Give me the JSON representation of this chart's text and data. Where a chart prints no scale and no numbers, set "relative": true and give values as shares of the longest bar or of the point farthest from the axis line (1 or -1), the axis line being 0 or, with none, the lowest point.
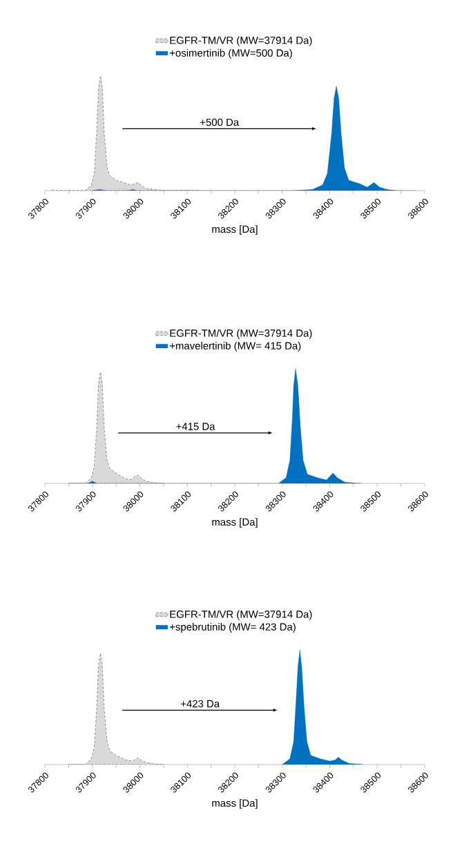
{
  "chart_data": [
    {
      "type": "area",
      "relative": true,
      "legend": "top",
      "xlabel": "mass [Da]",
      "annotations": [
        "+500 Da"
      ],
      "xlim": [
        37800,
        38600
      ],
      "xticks": [
        37800,
        {
          "value": 37850,
          "label": null
        },
        37900,
        {
          "value": 37950,
          "label": null
        },
        38000,
        {
          "value": 38050,
          "label": null
        },
        38100,
        {
          "value": 38150,
          "label": null
        },
        38200,
        {
          "value": 38250,
          "label": null
        },
        38300,
        {
          "value": 38350,
          "label": null
        },
        38400,
        {
          "value": 38450,
          "label": null
        },
        38500,
        {
          "value": 38550,
          "label": null
        },
        38600
      ],
      "series": [
        {
          "name": "EGFR-TM/VR (MW=37914 Da)",
          "color": "#d9d9d9",
          "line_style": "dashed",
          "x": [
            37815,
            37885,
            37898,
            37904,
            37909,
            37913,
            37917,
            37921,
            37925,
            37931,
            37937,
            37950,
            37966,
            37981,
            37996,
            38002,
            38012,
            38028,
            38049,
            38125
          ],
          "values": [
            0,
            0,
            0.05,
            0.15,
            0.5,
            0.9,
            1.0,
            0.9,
            0.5,
            0.2,
            0.13,
            0.09,
            0.07,
            0.05,
            0.07,
            0.05,
            0.02,
            0.01,
            0,
            0
          ]
        },
        {
          "name": "+osimertinib (MW=500 Da)",
          "color": "#0070c0",
          "x": [
            37900,
            37915,
            37930,
            37975,
            37985,
            37995,
            38323,
            38364,
            38385,
            38395,
            38404,
            38409,
            38414,
            38419,
            38424,
            38431,
            38440,
            38463,
            38479,
            38493,
            38505,
            38520,
            38541,
            38582
          ],
          "values": [
            0,
            0.01,
            0,
            0,
            0.01,
            0,
            0,
            0.01,
            0.05,
            0.15,
            0.5,
            0.8,
            0.91,
            0.8,
            0.5,
            0.2,
            0.09,
            0.06,
            0.03,
            0.07,
            0.03,
            0.01,
            0,
            0
          ]
        }
      ]
    },
    {
      "type": "area",
      "relative": true,
      "legend": "top",
      "xlabel": "mass [Da]",
      "annotations": [
        "+415 Da"
      ],
      "xlim": [
        37800,
        38600
      ],
      "xticks": [
        37800,
        {
          "value": 37850,
          "label": null
        },
        37900,
        {
          "value": 37950,
          "label": null
        },
        38000,
        {
          "value": 38050,
          "label": null
        },
        38100,
        {
          "value": 38150,
          "label": null
        },
        38200,
        {
          "value": 38250,
          "label": null
        },
        38300,
        {
          "value": 38350,
          "label": null
        },
        38400,
        {
          "value": 38450,
          "label": null
        },
        38500,
        {
          "value": 38550,
          "label": null
        },
        38600
      ],
      "series": [
        {
          "name": "EGFR-TM/VR (MW=37914 Da)",
          "color": "#d9d9d9",
          "line_style": "dashed",
          "x": [
            37850,
            37885,
            37898,
            37904,
            37909,
            37913,
            37917,
            37921,
            37925,
            37931,
            37937,
            37950,
            37970,
            37981,
            37996,
            38002,
            38012,
            38030,
            38050
          ],
          "values": [
            0,
            0,
            0.05,
            0.15,
            0.48,
            0.87,
            0.97,
            0.87,
            0.48,
            0.2,
            0.13,
            0.09,
            0.04,
            0.035,
            0.073,
            0.05,
            0.02,
            0.005,
            0
          ]
        },
        {
          "name": "+mavelertinib (MW= 415 Da)",
          "color": "#0070c0",
          "x": [
            37850,
            37890,
            37900,
            37910,
            37925,
            38292,
            38308,
            38316,
            38321,
            38324,
            38328,
            38333,
            38338,
            38344,
            38353,
            38374,
            38393,
            38407,
            38416,
            38432,
            38468
          ],
          "values": [
            0,
            0,
            0.02,
            0,
            0,
            0,
            0.05,
            0.2,
            0.55,
            0.85,
            1.0,
            0.85,
            0.5,
            0.2,
            0.08,
            0.05,
            0.03,
            0.09,
            0.05,
            0.01,
            0
          ]
        }
      ]
    },
    {
      "type": "area",
      "relative": true,
      "legend": "top",
      "xlabel": "mass [Da]",
      "annotations": [
        "+423 Da"
      ],
      "xlim": [
        37800,
        38600
      ],
      "xticks": [
        37800,
        {
          "value": 37850,
          "label": null
        },
        37900,
        {
          "value": 37950,
          "label": null
        },
        38000,
        {
          "value": 38050,
          "label": null
        },
        38100,
        {
          "value": 38150,
          "label": null
        },
        38200,
        {
          "value": 38250,
          "label": null
        },
        38300,
        {
          "value": 38350,
          "label": null
        },
        38400,
        {
          "value": 38450,
          "label": null
        },
        38500,
        {
          "value": 38550,
          "label": null
        },
        38600
      ],
      "series": [
        {
          "name": "EGFR-TM/VR (MW=37914 Da)",
          "color": "#d9d9d9",
          "line_style": "dashed",
          "x": [
            37850,
            37885,
            37898,
            37904,
            37909,
            37913,
            37917,
            37921,
            37925,
            37931,
            37937,
            37950,
            37970,
            37985,
            37996,
            38002,
            38012,
            38030,
            38050
          ],
          "values": [
            0,
            0,
            0.05,
            0.15,
            0.48,
            0.87,
            0.97,
            0.87,
            0.48,
            0.2,
            0.12,
            0.08,
            0.04,
            0.03,
            0.06,
            0.04,
            0.02,
            0.005,
            0
          ]
        },
        {
          "name": "+spebrutinib (MW= 423 Da)",
          "color": "#0070c0",
          "x": [
            38300,
            38316,
            38324,
            38329,
            38333,
            38337,
            38341,
            38346,
            38352,
            38360,
            38380,
            38400,
            38412,
            38418,
            38425,
            38440,
            38470
          ],
          "values": [
            0,
            0.05,
            0.2,
            0.55,
            0.85,
            1.0,
            0.85,
            0.5,
            0.2,
            0.08,
            0.05,
            0.03,
            0.04,
            0.065,
            0.04,
            0.01,
            0
          ]
        }
      ]
    }
  ]
}
